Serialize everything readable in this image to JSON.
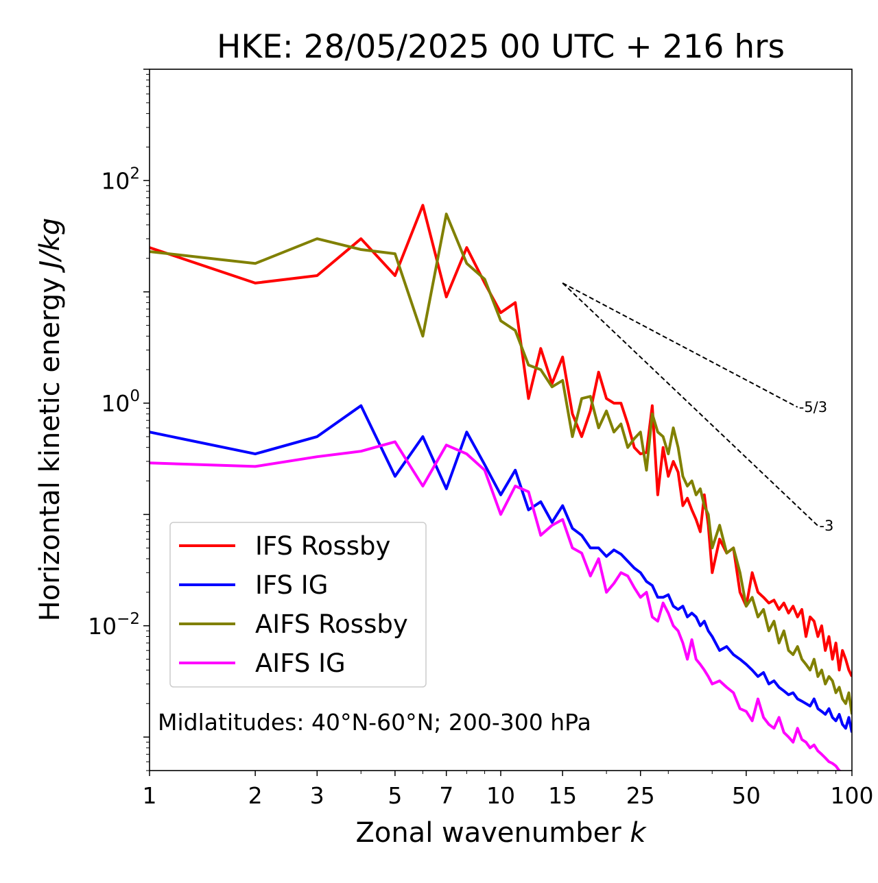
{
  "chart_data": {
    "type": "line",
    "title": "HKE: 28/05/2025 00 UTC + 216 hrs",
    "xlabel": "Zonal wavenumber",
    "xlabel_var": "k",
    "ylabel": "Horizontal kinetic energy",
    "ylabel_unit": "J/kg",
    "xscale": "log",
    "yscale": "log",
    "xlim": [
      1,
      100
    ],
    "ylim": [
      0.0005,
      1000
    ],
    "x_ticks": [
      1,
      2,
      3,
      5,
      7,
      10,
      15,
      25,
      50,
      100
    ],
    "x_tick_labels": [
      "1",
      "2",
      "3",
      "5",
      "7",
      "10",
      "15",
      "25",
      "50",
      "100"
    ],
    "y_ticks": [
      {
        "value": 100,
        "base": "10",
        "exp": "2"
      },
      {
        "value": 1,
        "base": "10",
        "exp": "0"
      },
      {
        "value": 0.01,
        "base": "10",
        "exp": "−2"
      }
    ],
    "grid": false,
    "legend_position": "lower-left",
    "annotation": "Midlatitudes: 40°N-60°N; 200-300 hPa",
    "reference_lines": [
      {
        "label": "-5/3",
        "slope": -1.6667,
        "x": [
          15,
          70
        ],
        "y_start": 12.0
      },
      {
        "label": "-3",
        "slope": -3,
        "x": [
          15,
          80
        ],
        "y_start": 12.0
      }
    ],
    "series": [
      {
        "name": "IFS Rossby",
        "color": "#ff0000",
        "x": [
          1,
          2,
          3,
          4,
          5,
          6,
          7,
          8,
          9,
          10,
          11,
          12,
          13,
          14,
          15,
          16,
          17,
          18,
          19,
          20,
          21,
          22,
          23,
          24,
          25,
          26,
          27,
          28,
          29,
          30,
          31,
          32,
          33,
          34,
          35,
          36,
          37,
          38,
          39,
          40,
          42,
          44,
          46,
          48,
          50,
          52,
          54,
          56,
          58,
          60,
          62,
          64,
          66,
          68,
          70,
          72,
          74,
          76,
          78,
          80,
          82,
          84,
          86,
          88,
          90,
          92,
          94,
          96,
          98,
          100
        ],
        "y": [
          25,
          12,
          14,
          30,
          14,
          60,
          9,
          25,
          12,
          6.5,
          8,
          1.1,
          3.1,
          1.5,
          2.6,
          0.8,
          0.5,
          0.85,
          1.9,
          1.1,
          1.0,
          1.0,
          0.65,
          0.4,
          0.35,
          0.36,
          0.95,
          0.15,
          0.4,
          0.22,
          0.3,
          0.24,
          0.12,
          0.14,
          0.11,
          0.09,
          0.07,
          0.15,
          0.08,
          0.03,
          0.06,
          0.045,
          0.05,
          0.02,
          0.015,
          0.03,
          0.02,
          0.018,
          0.016,
          0.017,
          0.014,
          0.016,
          0.013,
          0.015,
          0.012,
          0.014,
          0.008,
          0.012,
          0.011,
          0.008,
          0.01,
          0.006,
          0.008,
          0.005,
          0.007,
          0.004,
          0.006,
          0.005,
          0.004,
          0.0035
        ]
      },
      {
        "name": "IFS IG",
        "color": "#0000ff",
        "x": [
          1,
          2,
          3,
          4,
          5,
          6,
          7,
          8,
          9,
          10,
          11,
          12,
          13,
          14,
          15,
          16,
          17,
          18,
          19,
          20,
          21,
          22,
          23,
          24,
          25,
          26,
          27,
          28,
          29,
          30,
          31,
          32,
          33,
          34,
          35,
          36,
          37,
          38,
          39,
          40,
          42,
          44,
          46,
          48,
          50,
          52,
          54,
          56,
          58,
          60,
          62,
          64,
          66,
          68,
          70,
          72,
          74,
          76,
          78,
          80,
          82,
          84,
          86,
          88,
          90,
          92,
          94,
          96,
          98,
          100
        ],
        "y": [
          0.55,
          0.35,
          0.5,
          0.95,
          0.22,
          0.5,
          0.17,
          0.55,
          0.28,
          0.15,
          0.25,
          0.11,
          0.13,
          0.085,
          0.12,
          0.075,
          0.065,
          0.05,
          0.05,
          0.042,
          0.048,
          0.044,
          0.038,
          0.033,
          0.03,
          0.025,
          0.023,
          0.018,
          0.018,
          0.019,
          0.015,
          0.014,
          0.015,
          0.012,
          0.013,
          0.012,
          0.01,
          0.011,
          0.009,
          0.008,
          0.006,
          0.0065,
          0.0055,
          0.005,
          0.0045,
          0.004,
          0.0035,
          0.0038,
          0.003,
          0.0032,
          0.0028,
          0.0026,
          0.0024,
          0.0025,
          0.0022,
          0.0021,
          0.002,
          0.0019,
          0.0022,
          0.0018,
          0.0017,
          0.0016,
          0.0018,
          0.0015,
          0.0014,
          0.0016,
          0.0013,
          0.0012,
          0.0015,
          0.0011
        ]
      },
      {
        "name": "AIFS Rossby",
        "color": "#808000",
        "x": [
          1,
          2,
          3,
          4,
          5,
          6,
          7,
          8,
          9,
          10,
          11,
          12,
          13,
          14,
          15,
          16,
          17,
          18,
          19,
          20,
          21,
          22,
          23,
          24,
          25,
          26,
          27,
          28,
          29,
          30,
          31,
          32,
          33,
          34,
          35,
          36,
          37,
          38,
          39,
          40,
          42,
          44,
          46,
          48,
          50,
          52,
          54,
          56,
          58,
          60,
          62,
          64,
          66,
          68,
          70,
          72,
          74,
          76,
          78,
          80,
          82,
          84,
          86,
          88,
          90,
          92,
          94,
          96,
          98,
          100
        ],
        "y": [
          23,
          18,
          30,
          24,
          22,
          4.0,
          50,
          18,
          13,
          5.5,
          4.5,
          2.2,
          2.0,
          1.4,
          1.6,
          0.5,
          1.1,
          1.15,
          0.6,
          0.85,
          0.55,
          0.65,
          0.4,
          0.48,
          0.55,
          0.25,
          0.8,
          0.55,
          0.5,
          0.35,
          0.6,
          0.4,
          0.22,
          0.18,
          0.2,
          0.15,
          0.17,
          0.12,
          0.1,
          0.05,
          0.08,
          0.045,
          0.05,
          0.03,
          0.015,
          0.018,
          0.012,
          0.014,
          0.009,
          0.011,
          0.007,
          0.009,
          0.006,
          0.0055,
          0.0065,
          0.005,
          0.0045,
          0.004,
          0.005,
          0.0035,
          0.004,
          0.003,
          0.0035,
          0.0032,
          0.0025,
          0.0028,
          0.0022,
          0.002,
          0.0025,
          0.0016
        ]
      },
      {
        "name": "AIFS IG",
        "color": "#ff00ff",
        "x": [
          1,
          2,
          3,
          4,
          5,
          6,
          7,
          8,
          9,
          10,
          11,
          12,
          13,
          14,
          15,
          16,
          17,
          18,
          19,
          20,
          21,
          22,
          23,
          24,
          25,
          26,
          27,
          28,
          29,
          30,
          31,
          32,
          33,
          34,
          35,
          36,
          37,
          38,
          39,
          40,
          42,
          44,
          46,
          48,
          50,
          52,
          54,
          56,
          58,
          60,
          62,
          64,
          66,
          68,
          70,
          72,
          74,
          76,
          78,
          80,
          82,
          84,
          86,
          88,
          90,
          92,
          94,
          96,
          98,
          100
        ],
        "y": [
          0.29,
          0.27,
          0.33,
          0.37,
          0.45,
          0.18,
          0.42,
          0.35,
          0.25,
          0.1,
          0.18,
          0.16,
          0.065,
          0.08,
          0.09,
          0.05,
          0.045,
          0.028,
          0.04,
          0.02,
          0.024,
          0.03,
          0.028,
          0.022,
          0.018,
          0.02,
          0.012,
          0.011,
          0.016,
          0.013,
          0.01,
          0.009,
          0.007,
          0.005,
          0.0075,
          0.005,
          0.0045,
          0.004,
          0.0035,
          0.003,
          0.0032,
          0.0028,
          0.0025,
          0.0018,
          0.0017,
          0.0014,
          0.0022,
          0.0015,
          0.0013,
          0.0012,
          0.0015,
          0.0011,
          0.001,
          0.0009,
          0.0012,
          0.00095,
          0.0009,
          0.0008,
          0.00085,
          0.00075,
          0.0007,
          0.00065,
          0.0006,
          0.00058,
          0.00055,
          0.0005,
          0.00048,
          0.00046,
          0.00044,
          0.00042
        ]
      }
    ]
  }
}
